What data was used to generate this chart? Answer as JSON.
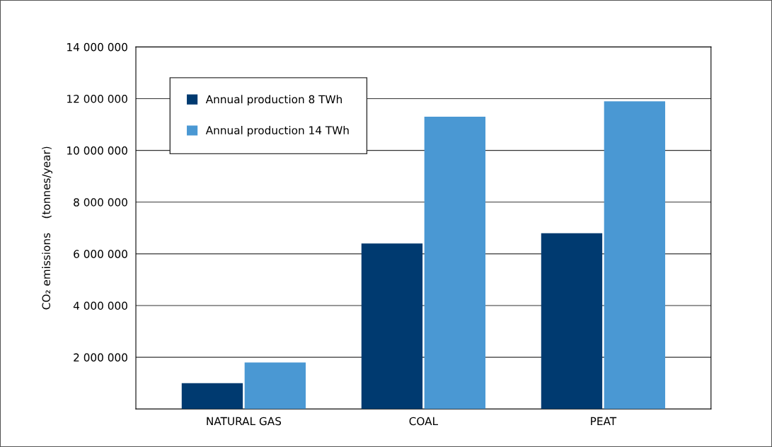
{
  "chart_data": {
    "type": "bar",
    "ylabel": "CO₂ emissions    (tonnes/year)",
    "categories": [
      "NATURAL GAS",
      "COAL",
      "PEAT"
    ],
    "series": [
      {
        "name": "Annual production 8 TWh",
        "color": "#003a70",
        "values": [
          1000000,
          6400000,
          6800000
        ]
      },
      {
        "name": "Annual production 14 TWh",
        "color": "#4a98d3",
        "values": [
          1800000,
          11300000,
          11900000
        ]
      }
    ],
    "ylim": [
      0,
      14000000
    ],
    "yticks": [
      {
        "value": 0,
        "label": null
      },
      {
        "value": 2000000,
        "label": "2 000 000"
      },
      {
        "value": 4000000,
        "label": "4 000 000"
      },
      {
        "value": 6000000,
        "label": "6 000 000"
      },
      {
        "value": 8000000,
        "label": "8 000 000"
      },
      {
        "value": 10000000,
        "label": "10 000 000"
      },
      {
        "value": 12000000,
        "label": "12 000 000"
      },
      {
        "value": 14000000,
        "label": "14 000 000"
      }
    ],
    "grid": "y",
    "legend": "top left"
  }
}
